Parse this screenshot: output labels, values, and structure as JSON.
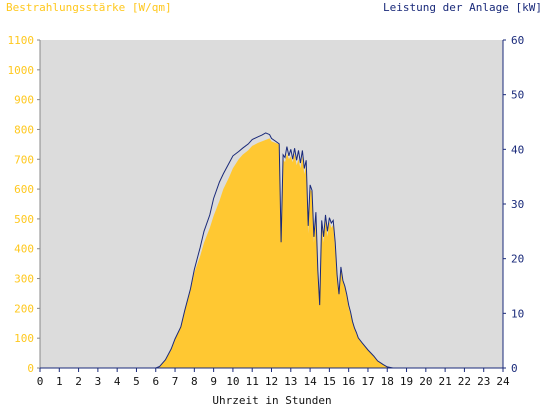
{
  "chart_data": {
    "type": "area",
    "title_left": "Bestrahlungsstärke [W/qm]",
    "title_right": "Leistung der Anlage [kW]",
    "xlabel": "Uhrzeit in Stunden",
    "xlim": [
      0,
      24
    ],
    "ylim_left": [
      0,
      1100
    ],
    "ylim_right": [
      0,
      60
    ],
    "x_ticks": [
      "0",
      "1",
      "2",
      "3",
      "4",
      "5",
      "6",
      "7",
      "8",
      "9",
      "10",
      "11",
      "12",
      "13",
      "14",
      "15",
      "16",
      "17",
      "18",
      "19",
      "20",
      "21",
      "22",
      "23",
      "24"
    ],
    "y_left_ticks": [
      "0",
      "100",
      "200",
      "300",
      "400",
      "500",
      "600",
      "700",
      "800",
      "900",
      "1000",
      "1100"
    ],
    "y_right_ticks": [
      "0",
      "10",
      "20",
      "30",
      "40",
      "50",
      "60"
    ],
    "grid": false,
    "colors": {
      "irradiance_fill": "#ffc832",
      "power_line": "#1a2a7a",
      "plot_background": "#dcdcdc",
      "left_axis_text": "#ffc81e",
      "right_axis_text": "#1a2a7a"
    },
    "series": [
      {
        "axis": "left",
        "style": "area",
        "x": [
          0,
          6,
          6.2,
          6.5,
          6.8,
          7,
          7.3,
          7.5,
          7.8,
          8,
          8.3,
          8.5,
          8.8,
          9,
          9.3,
          9.5,
          9.8,
          10,
          10.3,
          10.5,
          10.8,
          11,
          11.3,
          11.5,
          11.7,
          11.9,
          12,
          12.2,
          12.4,
          12.5,
          12.6,
          12.7,
          12.8,
          12.9,
          13,
          13.1,
          13.2,
          13.3,
          13.4,
          13.5,
          13.6,
          13.7,
          13.8,
          13.9,
          14,
          14.1,
          14.2,
          14.3,
          14.4,
          14.5,
          14.6,
          14.7,
          14.8,
          14.9,
          15,
          15.1,
          15.2,
          15.3,
          15.4,
          15.5,
          15.6,
          15.7,
          15.8,
          15.9,
          16,
          16.1,
          16.2,
          16.3,
          16.4,
          16.5,
          16.7,
          17,
          17.3,
          17.5,
          17.8,
          18,
          18.3,
          18.5,
          18.8,
          19,
          19.2,
          24
        ],
        "values": [
          0,
          0,
          5,
          25,
          60,
          95,
          140,
          190,
          260,
          320,
          375,
          420,
          470,
          510,
          560,
          600,
          640,
          670,
          700,
          715,
          730,
          745,
          755,
          760,
          765,
          770,
          760,
          755,
          750,
          420,
          700,
          690,
          720,
          700,
          710,
          690,
          720,
          680,
          700,
          670,
          710,
          650,
          680,
          450,
          600,
          590,
          420,
          500,
          310,
          220,
          480,
          420,
          500,
          440,
          490,
          470,
          480,
          400,
          300,
          250,
          330,
          290,
          270,
          240,
          200,
          180,
          155,
          130,
          115,
          100,
          85,
          60,
          40,
          25,
          12,
          5,
          0,
          0,
          0,
          0,
          0,
          0
        ]
      },
      {
        "axis": "right",
        "style": "line",
        "x": [
          0,
          6,
          6.2,
          6.5,
          6.8,
          7,
          7.3,
          7.5,
          7.8,
          8,
          8.3,
          8.5,
          8.8,
          9,
          9.3,
          9.5,
          9.8,
          10,
          10.3,
          10.5,
          10.8,
          11,
          11.3,
          11.5,
          11.7,
          11.9,
          12,
          12.2,
          12.4,
          12.5,
          12.6,
          12.7,
          12.8,
          12.9,
          13,
          13.1,
          13.2,
          13.3,
          13.4,
          13.5,
          13.6,
          13.7,
          13.8,
          13.9,
          14,
          14.1,
          14.2,
          14.3,
          14.4,
          14.5,
          14.6,
          14.7,
          14.8,
          14.9,
          15,
          15.1,
          15.2,
          15.3,
          15.4,
          15.5,
          15.6,
          15.7,
          15.8,
          15.9,
          16,
          16.1,
          16.2,
          16.3,
          16.4,
          16.5,
          16.7,
          17,
          17.3,
          17.5,
          17.8,
          18,
          18.3,
          18.5,
          18.8,
          19,
          19.2,
          24
        ],
        "values": [
          0,
          0,
          0.3,
          1.5,
          3.5,
          5.3,
          7.5,
          10.5,
          14.5,
          18,
          22,
          25,
          28,
          31,
          34,
          35.5,
          37.5,
          38.8,
          39.6,
          40.2,
          41,
          41.8,
          42.3,
          42.6,
          43,
          42.7,
          42,
          41.5,
          41,
          23,
          39,
          38.5,
          40.5,
          38.8,
          40,
          38.2,
          40.2,
          38,
          39.8,
          37.5,
          39.8,
          36.5,
          38,
          26,
          33.5,
          32.5,
          24,
          28.5,
          18,
          11.5,
          27,
          24,
          28,
          25,
          27.5,
          26.5,
          27,
          23,
          17,
          13.5,
          18.5,
          16,
          15,
          13.5,
          11.5,
          10.2,
          8.5,
          7.3,
          6.5,
          5.5,
          4.6,
          3.3,
          2.2,
          1.3,
          0.6,
          0.2,
          0,
          0,
          0,
          0,
          0,
          0
        ]
      }
    ]
  }
}
